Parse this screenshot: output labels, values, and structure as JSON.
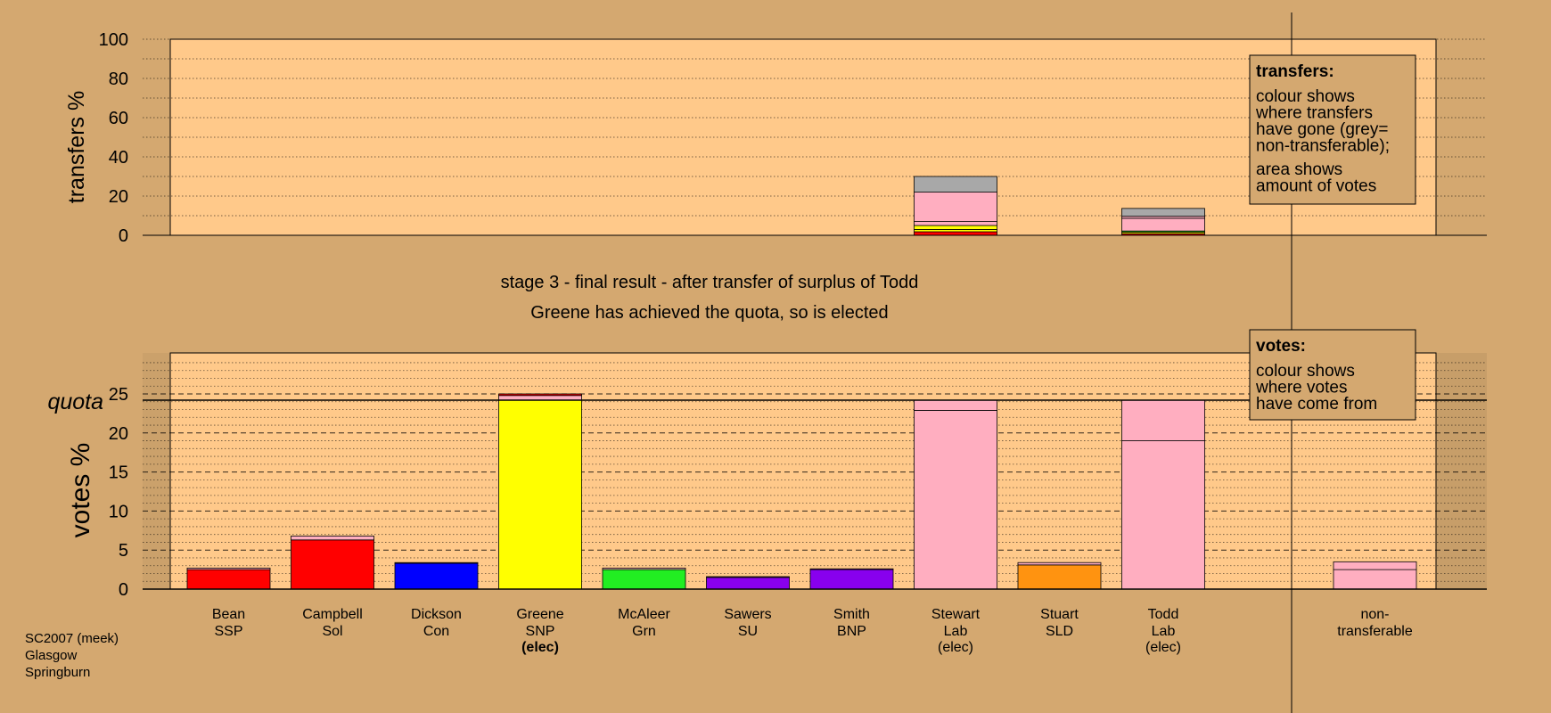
{
  "colors": {
    "background": "#d4a870",
    "panel": "#ffc98a",
    "legend_box": "#d4a870",
    "red": "#ff0000",
    "blue": "#0000ff",
    "yellow": "#ffff00",
    "green": "#22ee22",
    "purple": "#8800ee",
    "pink": "#ffaec0",
    "orange": "#ff9310",
    "grey": "#a8a8a8"
  },
  "titles": {
    "line1": "stage 3 - final result - after transfer of surplus of Todd",
    "line2": "Greene has achieved the quota, so is elected"
  },
  "footer": [
    "SC2007 (meek)",
    "Glasgow",
    "Springburn"
  ],
  "legend_transfers": {
    "title": "transfers:",
    "lines": [
      "colour shows",
      "where transfers",
      "have gone (grey=",
      "non-transferable);"
    ],
    "lines2": [
      "area shows",
      "amount of votes"
    ]
  },
  "legend_votes": {
    "title": "votes:",
    "lines": [
      "colour shows",
      "where votes",
      "have come from"
    ]
  },
  "chart_data": [
    {
      "type": "bar",
      "name": "transfers",
      "ylabel": "transfers %",
      "ylim": [
        0,
        100
      ],
      "yticks": [
        0,
        20,
        40,
        60,
        80,
        100
      ],
      "grid": true,
      "bars": [
        {
          "category": "Stewart",
          "segments": [
            {
              "value": 1.8,
              "color": "red"
            },
            {
              "value": 1.2,
              "color": "yellow"
            },
            {
              "value": 2.0,
              "color": "yellow"
            },
            {
              "value": 2.0,
              "color": "pink"
            },
            {
              "value": 15.0,
              "color": "pink"
            },
            {
              "value": 8.0,
              "color": "grey"
            }
          ]
        },
        {
          "category": "Todd",
          "segments": [
            {
              "value": 0.8,
              "color": "red"
            },
            {
              "value": 0.8,
              "color": "yellow"
            },
            {
              "value": 0.6,
              "color": "green"
            },
            {
              "value": 6.5,
              "color": "pink"
            },
            {
              "value": 1.0,
              "color": "pink"
            },
            {
              "value": 4.0,
              "color": "grey"
            }
          ]
        }
      ]
    },
    {
      "type": "bar",
      "name": "votes",
      "ylabel": "votes %",
      "ylim": [
        0,
        29
      ],
      "yticks": [
        0,
        5,
        10,
        15,
        20,
        25
      ],
      "quota": 24.2,
      "quota_label": "quota",
      "grid": true,
      "candidates": [
        {
          "name": "Bean",
          "party": "SSP",
          "status": "",
          "segments": [
            {
              "value": 2.5,
              "color": "red"
            },
            {
              "value": 0.2,
              "color": "pink"
            }
          ]
        },
        {
          "name": "Campbell",
          "party": "Sol",
          "status": "",
          "segments": [
            {
              "value": 6.3,
              "color": "red"
            },
            {
              "value": 0.5,
              "color": "pink"
            }
          ]
        },
        {
          "name": "Dickson",
          "party": "Con",
          "status": "",
          "segments": [
            {
              "value": 3.3,
              "color": "blue"
            },
            {
              "value": 0.1,
              "color": "pink"
            }
          ]
        },
        {
          "name": "Greene",
          "party": "SNP",
          "status": "(elec)",
          "status_bold": true,
          "segments": [
            {
              "value": 24.2,
              "color": "yellow"
            },
            {
              "value": 0.6,
              "color": "pink"
            },
            {
              "value": 0.2,
              "color": "red"
            }
          ]
        },
        {
          "name": "McAleer",
          "party": "Grn",
          "status": "",
          "segments": [
            {
              "value": 2.5,
              "color": "green"
            },
            {
              "value": 0.2,
              "color": "pink"
            }
          ]
        },
        {
          "name": "Sawers",
          "party": "SU",
          "status": "",
          "segments": [
            {
              "value": 1.5,
              "color": "purple"
            },
            {
              "value": 0.1,
              "color": "pink"
            }
          ]
        },
        {
          "name": "Smith",
          "party": "BNP",
          "status": "",
          "segments": [
            {
              "value": 2.5,
              "color": "purple"
            },
            {
              "value": 0.1,
              "color": "pink"
            }
          ]
        },
        {
          "name": "Stewart",
          "party": "Lab",
          "status": "(elec)",
          "status_bold": false,
          "segments": [
            {
              "value": 22.9,
              "color": "pink"
            },
            {
              "value": 1.3,
              "color": "pink"
            }
          ]
        },
        {
          "name": "Stuart",
          "party": "SLD",
          "status": "",
          "segments": [
            {
              "value": 3.1,
              "color": "orange"
            },
            {
              "value": 0.3,
              "color": "pink"
            }
          ]
        },
        {
          "name": "Todd",
          "party": "Lab",
          "status": "(elec)",
          "status_bold": false,
          "segments": [
            {
              "value": 19.0,
              "color": "pink"
            },
            {
              "value": 5.2,
              "color": "pink"
            }
          ]
        }
      ],
      "nontransferable": {
        "label": [
          "non-",
          "transferable"
        ],
        "segments": [
          {
            "value": 2.5,
            "color": "pink"
          },
          {
            "value": 1.0,
            "color": "pink"
          }
        ]
      }
    }
  ]
}
